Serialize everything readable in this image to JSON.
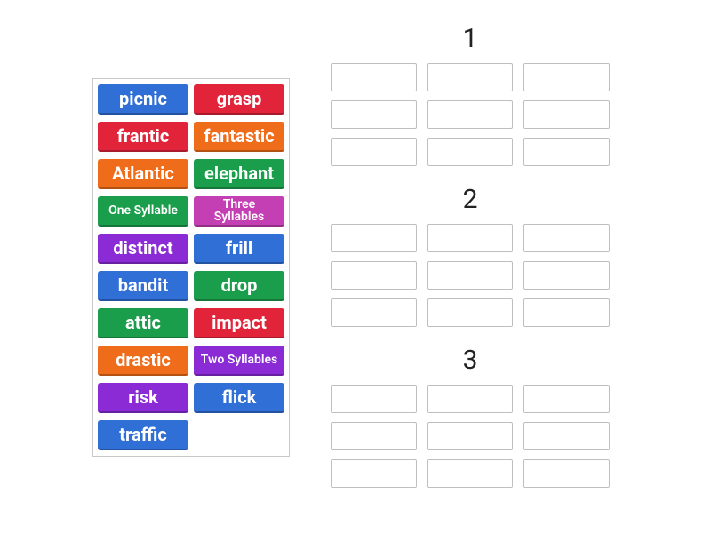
{
  "colors": {
    "blue": "#2f6fd6",
    "red": "#e2243b",
    "orange": "#ef6c1a",
    "green": "#1b9e4b",
    "purple": "#8a2bd6",
    "magenta": "#c43fb3"
  },
  "wordBank": [
    {
      "label": "picnic",
      "color": "blue",
      "size": "normal"
    },
    {
      "label": "grasp",
      "color": "red",
      "size": "normal"
    },
    {
      "label": "frantic",
      "color": "red",
      "size": "normal"
    },
    {
      "label": "fantastic",
      "color": "orange",
      "size": "normal"
    },
    {
      "label": "Atlantic",
      "color": "orange",
      "size": "normal"
    },
    {
      "label": "elephant",
      "color": "green",
      "size": "normal"
    },
    {
      "label": "One Syllable",
      "color": "green",
      "size": "small"
    },
    {
      "label": "Three Syllables",
      "color": "magenta",
      "size": "small"
    },
    {
      "label": "distinct",
      "color": "purple",
      "size": "normal"
    },
    {
      "label": "frill",
      "color": "blue",
      "size": "normal"
    },
    {
      "label": "bandit",
      "color": "blue",
      "size": "normal"
    },
    {
      "label": "drop",
      "color": "green",
      "size": "normal"
    },
    {
      "label": "attic",
      "color": "green",
      "size": "normal"
    },
    {
      "label": "impact",
      "color": "red",
      "size": "normal"
    },
    {
      "label": "drastic",
      "color": "orange",
      "size": "normal"
    },
    {
      "label": "Two Syllables",
      "color": "purple",
      "size": "small"
    },
    {
      "label": "risk",
      "color": "purple",
      "size": "normal"
    },
    {
      "label": "flick",
      "color": "blue",
      "size": "normal"
    },
    {
      "label": "traffic",
      "color": "blue",
      "size": "normal"
    }
  ],
  "groups": [
    {
      "title": "1",
      "slots": 9
    },
    {
      "title": "2",
      "slots": 9
    },
    {
      "title": "3",
      "slots": 9
    }
  ]
}
